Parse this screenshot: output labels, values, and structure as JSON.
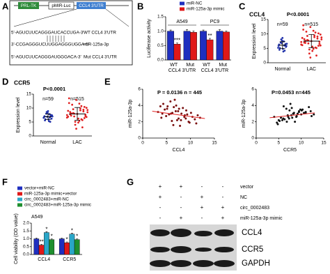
{
  "panel_labels": [
    "A",
    "B",
    "C",
    "D",
    "E",
    "F",
    "G"
  ],
  "diagram_a": {
    "boxes": [
      "PRL-TK",
      "pMIR-Luc",
      "CCL4 3'UTR"
    ],
    "sequences": [
      {
        "seq": "5'-AGUCUUCAGGGAUCACCUGA-3'",
        "label": "WT CCL4 3'UTR"
      },
      {
        "seq": "3'-CCGAGGGUCUUGGAGGGUGGA-5'",
        "label": "miR-125a-3p"
      },
      {
        "seq": "5'-AGUCUUCAGGGAUGGGACA-3'",
        "label": "Mut CCL4 3'UTR"
      }
    ]
  },
  "blot_g": {
    "conditions": [
      {
        "label": "vector",
        "signs": [
          "+",
          "+",
          "-",
          "-"
        ]
      },
      {
        "label": "NC",
        "signs": [
          "+",
          "-",
          "+",
          "-"
        ]
      },
      {
        "label": "circ_0002483",
        "signs": [
          "-",
          "-",
          "+",
          "+"
        ]
      },
      {
        "label": "miR-125a-3p mimic",
        "signs": [
          "-",
          "+",
          "-",
          "+"
        ]
      }
    ],
    "bands": [
      "CCL4",
      "CCR5",
      "GAPDH"
    ]
  },
  "chart_data": [
    {
      "type": "bar",
      "ylabel": "Luciferase activity",
      "categories": [
        "WT",
        "Mut",
        "WT",
        "Mut"
      ],
      "groups": [
        "A549",
        "PC9"
      ],
      "group_labels": [
        "CCL4 3'UTR",
        "CCL4 3'UTR"
      ],
      "series": [
        {
          "name": "miR-NC",
          "color": "#1f2fbf",
          "values": [
            1.0,
            1.0,
            1.0,
            1.0
          ],
          "errors": [
            0.04,
            0.05,
            0.04,
            0.05
          ]
        },
        {
          "name": "miR-125a-3p mimic",
          "color": "#e01818",
          "values": [
            0.55,
            0.96,
            0.7,
            0.97
          ],
          "errors": [
            0.04,
            0.05,
            0.05,
            0.04
          ],
          "significance": [
            "***",
            null,
            "**",
            null
          ]
        }
      ],
      "ylim": [
        0,
        1.5
      ],
      "yticks": [
        {
          "value": 0,
          "label": "0.0"
        },
        {
          "value": 0.5,
          "label": "0.5"
        },
        {
          "value": 1,
          "label": "1.0"
        },
        {
          "value": 1.5,
          "label": "1.5"
        }
      ]
    },
    {
      "type": "dotplot",
      "title": "CCL4",
      "annotation": "P<0.0001",
      "ylabel": "Expression level",
      "categories": [
        "Normal",
        "LAC"
      ],
      "n_labels": [
        "n=59",
        "n=515"
      ],
      "groups": [
        {
          "color": "#2233aa",
          "mean": 6.1,
          "sd": 1.2,
          "values": [
            5.2,
            6.1,
            4.8,
            7.0,
            5.9,
            6.5,
            3.9,
            8.1,
            6.3,
            5.5,
            7.4,
            6.8,
            4.5,
            5.8,
            6.0,
            7.7,
            5.1,
            6.6,
            4.2,
            8.6
          ]
        },
        {
          "color": "#e02020",
          "mean": 7.5,
          "sd": 2.3,
          "values": [
            7.2,
            8.4,
            5.6,
            9.3,
            6.1,
            10.2,
            4.8,
            7.7,
            11.5,
            6.6,
            8.9,
            3.2,
            7.0,
            9.8,
            5.3,
            12.4,
            6.9,
            8.1,
            2.5,
            7.5,
            10.8,
            6.3,
            9.1,
            4.1,
            7.9,
            8.6,
            5.9,
            11.1,
            6.7,
            13.0,
            7.3,
            9.5,
            4.6,
            8.2,
            6.0,
            10.5,
            1.8,
            7.6,
            8.8,
            5.1
          ]
        }
      ],
      "ylim": [
        0,
        15
      ],
      "yticks": [
        0,
        5,
        10,
        15
      ]
    },
    {
      "type": "dotplot",
      "title": "CCR5",
      "annotation": "P<0.0001",
      "ylabel": "Expression level",
      "categories": [
        "Normal",
        "LAC"
      ],
      "n_labels": [
        "n=59",
        "n=515"
      ],
      "groups": [
        {
          "color": "#2233aa",
          "mean": 6.9,
          "sd": 1.0,
          "values": [
            6.5,
            7.2,
            5.9,
            8.0,
            6.8,
            7.5,
            5.3,
            8.6,
            7.1,
            6.2,
            7.8,
            6.9,
            5.6,
            7.4,
            6.6,
            8.3,
            6.0,
            7.0,
            5.1,
            8.9
          ]
        },
        {
          "color": "#e02020",
          "mean": 7.9,
          "sd": 2.3,
          "values": [
            7.5,
            8.8,
            6.2,
            9.6,
            6.9,
            10.4,
            5.4,
            8.0,
            11.8,
            7.1,
            9.2,
            4.0,
            7.8,
            10.1,
            6.0,
            12.9,
            7.3,
            8.5,
            3.1,
            7.9,
            11.2,
            6.6,
            9.4,
            4.8,
            8.2,
            9.0,
            6.4,
            11.6,
            7.0,
            13.5,
            7.6,
            9.9,
            5.1,
            8.6,
            6.8,
            10.7,
            2.6,
            8.1,
            9.3,
            5.7
          ]
        }
      ],
      "ylim": [
        0,
        15
      ],
      "yticks": [
        0,
        5,
        10,
        15
      ]
    },
    {
      "type": "scatter",
      "annotation": "P = 0.0136   n = 445",
      "xlabel": "CCL4",
      "ylabel": "miR-125a-3p",
      "color": "#7a1010",
      "x": [
        6.2,
        7.5,
        5.1,
        8.8,
        4.3,
        9.6,
        6.9,
        3.7,
        10.4,
        7.2,
        5.8,
        8.1,
        11.2,
        4.9,
        6.5,
        9.1,
        7.8,
        3.2,
        10.9,
        5.5,
        8.4,
        6.1,
        12.0,
        7.0,
        4.6,
        9.8,
        5.9,
        8.7,
        6.7,
        11.5,
        7.4,
        3.9,
        9.3,
        6.4,
        10.1,
        5.2,
        8.0,
        7.6,
        4.1,
        9.0
      ],
      "y": [
        3.1,
        2.4,
        3.6,
        2.8,
        4.2,
        2.0,
        3.3,
        3.9,
        2.6,
        2.2,
        4.5,
        3.0,
        1.8,
        2.7,
        3.8,
        3.4,
        1.5,
        3.2,
        2.3,
        2.9,
        3.7,
        2.1,
        2.5,
        4.0,
        3.5,
        1.9,
        3.0,
        2.6,
        4.7,
        2.8,
        3.3,
        2.5,
        2.9,
        1.6,
        3.1,
        3.9,
        2.2,
        3.6,
        3.0,
        2.4
      ],
      "trend_line": {
        "color": "#e02020",
        "x": [
          2,
          13
        ],
        "y": [
          3.3,
          2.4
        ]
      },
      "xlim": [
        0,
        15
      ],
      "xticks": [
        0,
        5,
        10,
        15
      ],
      "ylim": [
        0,
        6
      ],
      "yticks": [
        0,
        2,
        4,
        6
      ]
    },
    {
      "type": "scatter",
      "annotation": "P=0.0453 n=445",
      "xlabel": "CCR5",
      "ylabel": "miR-125a-3p",
      "color": "#111111",
      "x": [
        7.1,
        8.3,
        6.0,
        9.5,
        5.2,
        10.3,
        7.8,
        4.6,
        11.0,
        8.0,
        6.7,
        9.0,
        12.1,
        5.8,
        7.4,
        10.0,
        8.6,
        4.0,
        11.7,
        6.3,
        9.2,
        7.0,
        12.8,
        7.9,
        5.5,
        10.6,
        6.8,
        9.5,
        7.6,
        12.3,
        8.2,
        4.8,
        10.1,
        7.3,
        11.0,
        6.1,
        8.9,
        8.4,
        5.0,
        9.8
      ],
      "y": [
        2.6,
        3.0,
        2.4,
        3.2,
        2.1,
        3.5,
        2.8,
        1.9,
        3.1,
        2.5,
        3.6,
        2.7,
        3.3,
        2.2,
        3.4,
        2.9,
        2.0,
        2.6,
        3.8,
        2.3,
        3.0,
        2.8,
        2.9,
        3.7,
        2.5,
        3.1,
        2.0,
        3.3,
        4.2,
        2.7,
        3.0,
        1.7,
        3.4,
        2.4,
        3.2,
        3.9,
        2.6,
        3.1,
        2.2,
        3.5
      ],
      "trend_line": {
        "color": "#e02020",
        "x": [
          3,
          13
        ],
        "y": [
          2.5,
          3.1
        ]
      },
      "xlim": [
        0,
        15
      ],
      "xticks": [
        0,
        5,
        10,
        15
      ],
      "ylim": [
        0,
        6
      ],
      "yticks": [
        0,
        2,
        4,
        6
      ]
    },
    {
      "type": "bar",
      "title": "A549",
      "ylabel": "Cell viability (OD value)",
      "categories": [
        "CCL4",
        "CCR5"
      ],
      "series": [
        {
          "name": "vector+miR-NC",
          "color": "#1f2fbf",
          "values": [
            1.0,
            1.0
          ],
          "errors": [
            0.05,
            0.05
          ]
        },
        {
          "name": "miR-125a-3p mimic+vector",
          "color": "#e01818",
          "values": [
            0.6,
            0.75
          ],
          "errors": [
            0.05,
            0.05
          ],
          "significance": [
            "**",
            "*"
          ]
        },
        {
          "name": "circ_0002483+miR-NC",
          "color": "#2aa6c8",
          "values": [
            1.4,
            1.3
          ],
          "errors": [
            0.06,
            0.06
          ],
          "significance": [
            "*",
            "*"
          ]
        },
        {
          "name": "circ_0002483+miR-125a-3p mimic",
          "color": "#1e8f2e",
          "values": [
            0.95,
            0.95
          ],
          "errors": [
            0.05,
            0.05
          ],
          "significance": [
            "*",
            "*"
          ]
        }
      ],
      "ylim": [
        0,
        2
      ],
      "yticks": [
        {
          "value": 0,
          "label": "0.0"
        },
        {
          "value": 0.5,
          "label": "0.5"
        },
        {
          "value": 1,
          "label": "1.0"
        },
        {
          "value": 1.5,
          "label": "1.5"
        },
        {
          "value": 2,
          "label": "2.0"
        }
      ]
    }
  ]
}
